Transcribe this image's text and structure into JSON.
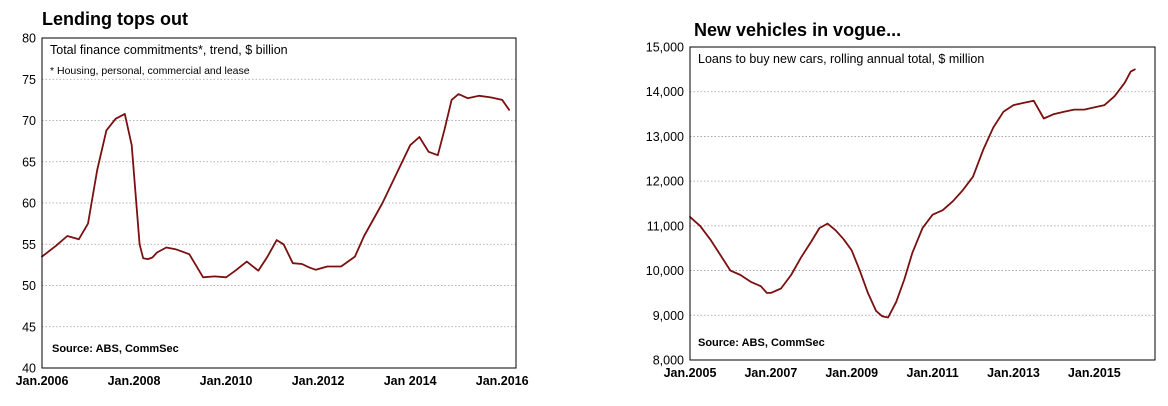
{
  "chart_data": [
    {
      "type": "line",
      "title": "Lending tops out",
      "subtitle": "Total finance commitments*, trend, $ billion",
      "footnote": "* Housing, personal, commercial and lease",
      "source": "Source: ABS, CommSec",
      "ylim": [
        40,
        80
      ],
      "yticks": [
        "40",
        "45",
        "50",
        "55",
        "60",
        "65",
        "70",
        "75",
        "80"
      ],
      "xlim": [
        2006.0,
        2016.3
      ],
      "xticks": [
        {
          "x": 2006,
          "label": "Jan.2006"
        },
        {
          "x": 2008,
          "label": "Jan.2008"
        },
        {
          "x": 2010,
          "label": "Jan.2010"
        },
        {
          "x": 2012,
          "label": "Jan.2012"
        },
        {
          "x": 2014,
          "label": "Jan 2014"
        },
        {
          "x": 2016,
          "label": "Jan.2016"
        }
      ],
      "grid": true,
      "color": "#7a1010",
      "series": [
        {
          "x": [
            2006.0,
            2006.3,
            2006.55,
            2006.8,
            2007.0,
            2007.2,
            2007.4,
            2007.6,
            2007.8,
            2007.95,
            2008.05,
            2008.12,
            2008.2,
            2008.3,
            2008.4,
            2008.5,
            2008.7,
            2008.9,
            2009.0,
            2009.2,
            2009.5,
            2009.75,
            2010.0,
            2010.2,
            2010.45,
            2010.7,
            2010.9,
            2011.1,
            2011.25,
            2011.45,
            2011.65,
            2011.8,
            2011.95,
            2012.2,
            2012.5,
            2012.8,
            2013.0,
            2013.2,
            2013.4,
            2013.7,
            2014.0,
            2014.2,
            2014.4,
            2014.6,
            2014.75,
            2014.9,
            2015.05,
            2015.25,
            2015.5,
            2015.75,
            2016.0,
            2016.15
          ],
          "y": [
            53.5,
            54.8,
            56.0,
            55.6,
            57.5,
            64.0,
            68.8,
            70.2,
            70.8,
            67.0,
            60.0,
            55.0,
            53.3,
            53.2,
            53.4,
            54.0,
            54.6,
            54.4,
            54.2,
            53.8,
            51.0,
            51.1,
            51.0,
            51.8,
            52.9,
            51.8,
            53.5,
            55.5,
            55.0,
            52.7,
            52.6,
            52.2,
            51.9,
            52.3,
            52.3,
            53.5,
            56.0,
            58.0,
            60.0,
            63.5,
            67.0,
            68.0,
            66.2,
            65.8,
            69.0,
            72.5,
            73.2,
            72.7,
            73.0,
            72.8,
            72.5,
            71.3
          ]
        }
      ]
    },
    {
      "type": "line",
      "title": "New vehicles in vogue...",
      "subtitle": "Loans to buy new cars, rolling annual total, $ million",
      "source": "Source: ABS, CommSec",
      "ylim": [
        8000,
        15000
      ],
      "yticks": [
        "8,000",
        "9,000",
        "10,000",
        "11,000",
        "12,000",
        "13,000",
        "14,000",
        "15,000"
      ],
      "xlim": [
        2005.0,
        2016.5
      ],
      "xticks": [
        {
          "x": 2005,
          "label": "Jan.2005"
        },
        {
          "x": 2007,
          "label": "Jan.2007"
        },
        {
          "x": 2009,
          "label": "Jan.2009"
        },
        {
          "x": 2011,
          "label": "Jan.2011"
        },
        {
          "x": 2013,
          "label": "Jan.2013"
        },
        {
          "x": 2015,
          "label": "Jan.2015"
        }
      ],
      "grid": true,
      "color": "#7a1010",
      "series": [
        {
          "x": [
            2005.0,
            2005.25,
            2005.5,
            2005.75,
            2006.0,
            2006.25,
            2006.5,
            2006.75,
            2006.9,
            2007.0,
            2007.25,
            2007.5,
            2007.75,
            2008.0,
            2008.2,
            2008.4,
            2008.6,
            2008.8,
            2009.0,
            2009.2,
            2009.4,
            2009.6,
            2009.75,
            2009.9,
            2010.1,
            2010.3,
            2010.5,
            2010.75,
            2011.0,
            2011.25,
            2011.5,
            2011.75,
            2012.0,
            2012.25,
            2012.5,
            2012.75,
            2013.0,
            2013.25,
            2013.5,
            2013.75,
            2014.0,
            2014.25,
            2014.5,
            2014.75,
            2015.0,
            2015.25,
            2015.5,
            2015.75,
            2015.9,
            2016.0
          ],
          "y": [
            11200,
            11000,
            10700,
            10350,
            10000,
            9900,
            9750,
            9650,
            9500,
            9500,
            9600,
            9900,
            10300,
            10650,
            10950,
            11050,
            10900,
            10700,
            10450,
            10000,
            9500,
            9100,
            8980,
            8950,
            9300,
            9800,
            10400,
            10950,
            11250,
            11350,
            11550,
            11800,
            12100,
            12700,
            13200,
            13550,
            13700,
            13750,
            13800,
            13400,
            13500,
            13550,
            13600,
            13600,
            13650,
            13700,
            13900,
            14200,
            14450,
            14500
          ]
        }
      ]
    }
  ]
}
